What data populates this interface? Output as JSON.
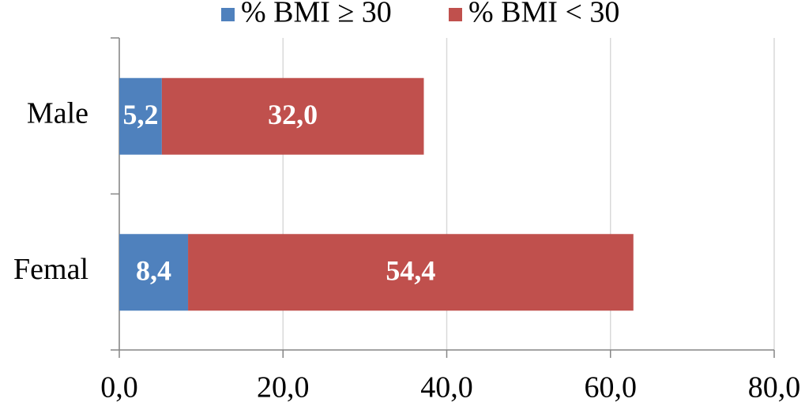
{
  "chart_data": {
    "type": "stacked_barh",
    "categories": [
      "Male",
      "Femal"
    ],
    "series": [
      {
        "name": "% BMI ≥ 30",
        "color": "#4f81bd",
        "values": [
          5.2,
          8.4
        ],
        "value_labels": [
          "5,2",
          "8,4"
        ]
      },
      {
        "name": "% BMI < 30",
        "color": "#c0504d",
        "values": [
          32.0,
          54.4
        ],
        "value_labels": [
          "32,0",
          "54,4"
        ]
      }
    ],
    "xlim": [
      0,
      80
    ],
    "xticks": [
      {
        "value": 0,
        "label": "0,0"
      },
      {
        "value": 20,
        "label": "20,0"
      },
      {
        "value": 40,
        "label": "40,0"
      },
      {
        "value": 60,
        "label": "60,0"
      },
      {
        "value": 80,
        "label": "80,0"
      }
    ],
    "grid": true,
    "legend": "top"
  }
}
